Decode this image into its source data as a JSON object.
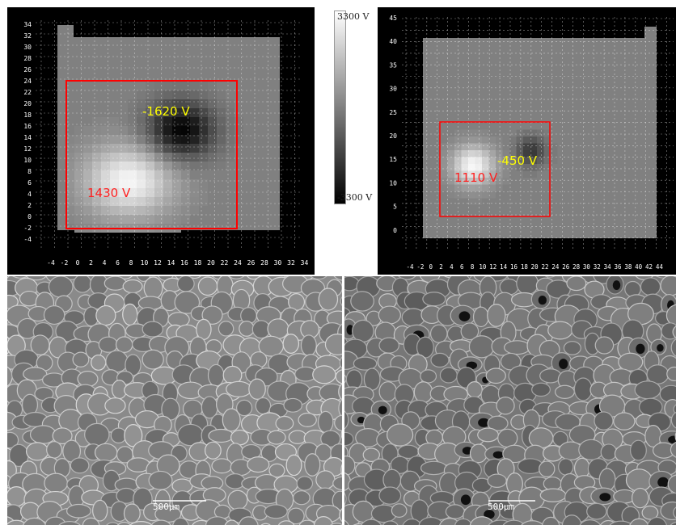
{
  "colorbar": {
    "max_label": "3300 V",
    "min_label": "-3300 V"
  },
  "map_left": {
    "x_ticks": [
      "-4",
      "-2",
      "0",
      "2",
      "4",
      "6",
      "8",
      "10",
      "12",
      "14",
      "16",
      "18",
      "20",
      "22",
      "24",
      "26",
      "28",
      "30",
      "32",
      "34"
    ],
    "y_ticks": [
      "34",
      "32",
      "30",
      "28",
      "26",
      "24",
      "22",
      "20",
      "18",
      "16",
      "14",
      "12",
      "10",
      "8",
      "6",
      "4",
      "2",
      "0",
      "-2",
      "-4"
    ],
    "neg_label": "-1620 V",
    "pos_label": "1430 V",
    "neg_color": "#ffff00",
    "pos_color": "#ff2020",
    "roi_color": "#ff0000"
  },
  "map_right": {
    "x_ticks": [
      "-4",
      "-2",
      "0",
      "2",
      "4",
      "6",
      "8",
      "10",
      "12",
      "14",
      "16",
      "18",
      "20",
      "22",
      "24",
      "26",
      "28",
      "30",
      "32",
      "34",
      "36",
      "38",
      "40",
      "42",
      "44"
    ],
    "y_ticks": [
      "45",
      "40",
      "35",
      "30",
      "25",
      "20",
      "15",
      "10",
      "5",
      "0"
    ],
    "neg_label": "-450 V",
    "pos_label": "1110 V",
    "neg_color": "#ffff00",
    "pos_color": "#ff2020",
    "roi_color": "#ff0000"
  },
  "sem_left": {
    "scale_label": "500µm"
  },
  "sem_right": {
    "scale_label": "500µm"
  }
}
